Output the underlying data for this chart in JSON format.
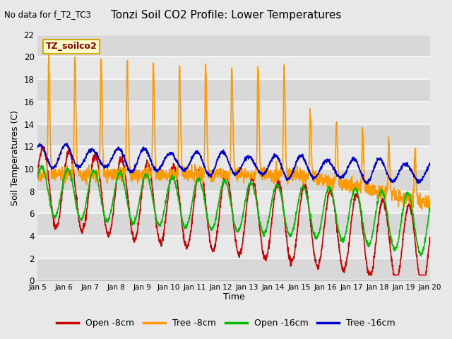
{
  "title": "Tonzi Soil CO2 Profile: Lower Temperatures",
  "subtitle": "No data for f_T2_TC3",
  "ylabel": "Soil Temperatures (C)",
  "xlabel": "Time",
  "legend_label": "TZ_soilco2",
  "series_labels": [
    "Open -8cm",
    "Tree -8cm",
    "Open -16cm",
    "Tree -16cm"
  ],
  "series_colors": [
    "#cc0000",
    "#ff9900",
    "#00bb00",
    "#0000cc"
  ],
  "ylim": [
    0,
    22
  ],
  "xlim_days": 15,
  "xtick_labels": [
    "Jan 5",
    "Jan 6",
    "Jan 7",
    "Jan 8",
    "Jan 9",
    "Jan 10",
    "Jan 11",
    "Jan 12",
    "Jan 13",
    "Jan 14",
    "Jan 15",
    "Jan 16",
    "Jan 17",
    "Jan 18",
    "Jan 19",
    "Jan 20"
  ],
  "bg_color": "#e8e8e8",
  "plot_bg_color": "#e0e0e0",
  "grid_color": "#f5f5f5",
  "yticks": [
    0,
    2,
    4,
    6,
    8,
    10,
    12,
    14,
    16,
    18,
    20,
    22
  ]
}
